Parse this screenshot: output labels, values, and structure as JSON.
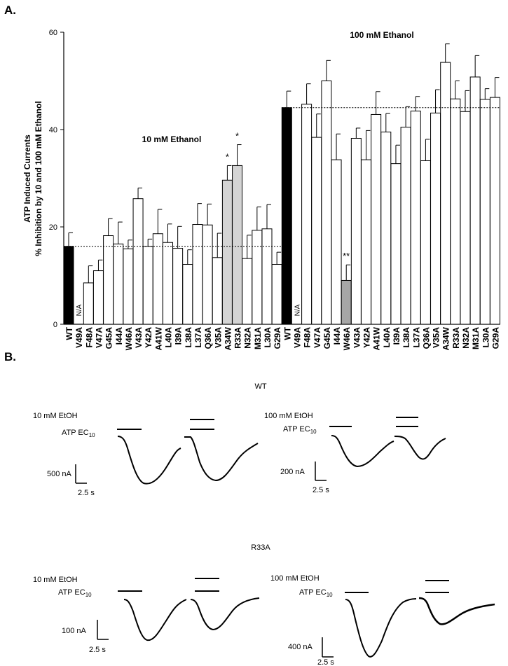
{
  "panels": {
    "a_label": "A.",
    "b_label": "B."
  },
  "chart_data": {
    "type": "bar",
    "ylabel_line1": "ATP Induced Currents",
    "ylabel_line2": "% Inhibition by 10 and 100 mM Ethanol",
    "ylim": [
      0,
      60
    ],
    "yticks": [
      0,
      20,
      40,
      60
    ],
    "groups": [
      {
        "title": "10 mM Ethanol",
        "wt_reference_line": 16,
        "categories": [
          "WT",
          "V49A",
          "F48A",
          "V47A",
          "G45A",
          "I44A",
          "W46A",
          "V43A",
          "Y42A",
          "A41W",
          "L40A",
          "I39A",
          "L38A",
          "L37A",
          "Q36A",
          "V35A",
          "A34W",
          "R33A",
          "N32A",
          "M31A",
          "L30A",
          "G29A"
        ],
        "values": [
          16,
          null,
          8.5,
          11,
          18.2,
          16.5,
          15.5,
          25.8,
          16,
          18.6,
          16.8,
          15.6,
          12.3,
          20.5,
          20.4,
          13.7,
          29.6,
          32.6,
          13.5,
          19.3,
          19.6,
          12.3
        ],
        "errors": [
          2.8,
          null,
          3.5,
          2.2,
          3.5,
          4.5,
          1.8,
          2.2,
          1.5,
          5,
          3.8,
          4.5,
          3,
          4.3,
          4.3,
          5,
          3,
          4.3,
          4.8,
          4.8,
          5,
          2.5
        ],
        "fills": [
          "black",
          "none",
          "white",
          "white",
          "white",
          "white",
          "white",
          "white",
          "white",
          "white",
          "white",
          "white",
          "white",
          "white",
          "white",
          "white",
          "lightgray",
          "lightgray",
          "white",
          "white",
          "white",
          "white"
        ],
        "annotations": [
          {
            "category": "A34W",
            "text": "*"
          },
          {
            "category": "R33A",
            "text": "*"
          }
        ],
        "na_label": "N/A"
      },
      {
        "title": "100 mM Ethanol",
        "wt_reference_line": 44.5,
        "categories": [
          "WT",
          "V49A",
          "F48A",
          "V47A",
          "G45A",
          "I44A",
          "W46A",
          "V43A",
          "Y42A",
          "A41W",
          "L40A",
          "I39A",
          "L38A",
          "L37A",
          "Q36A",
          "V35A",
          "A34W",
          "R33A",
          "N32A",
          "M31A",
          "L30A",
          "G29A"
        ],
        "values": [
          44.5,
          null,
          45.2,
          38.4,
          50,
          33.8,
          9,
          38.2,
          33.8,
          43.1,
          39.5,
          33,
          40.5,
          43.8,
          33.6,
          43.4,
          53.8,
          46.3,
          43.7,
          50.8,
          46.2,
          46.6
        ],
        "errors": [
          3.4,
          null,
          4.2,
          4.8,
          4.2,
          5.3,
          3.2,
          2.1,
          6,
          4.7,
          3.8,
          3.8,
          4.2,
          3,
          4.4,
          4.8,
          3.8,
          3.7,
          4.3,
          4.4,
          2.2,
          4.1
        ],
        "fills": [
          "black",
          "none",
          "white",
          "white",
          "white",
          "white",
          "gray",
          "white",
          "white",
          "white",
          "white",
          "white",
          "white",
          "white",
          "white",
          "white",
          "white",
          "white",
          "white",
          "white",
          "white",
          "white"
        ],
        "annotations": [
          {
            "category": "W46A",
            "text": "**"
          }
        ],
        "na_label": "N/A"
      }
    ]
  },
  "traces": {
    "blocks": [
      {
        "title": "WT",
        "left": {
          "etoh_label": "10 mM EtOH",
          "atp_label": "ATP EC",
          "atp_sub": "10",
          "scale_y": "500 nA",
          "scale_x": "2.5 s"
        },
        "right": {
          "etoh_label": "100 mM EtOH",
          "atp_label": "ATP EC",
          "atp_sub": "10",
          "scale_y": "200 nA",
          "scale_x": "2.5 s"
        }
      },
      {
        "title": "R33A",
        "left": {
          "etoh_label": "10 mM EtOH",
          "atp_label": "ATP EC",
          "atp_sub": "10",
          "scale_y": "100 nA",
          "scale_x": "2.5 s"
        },
        "right": {
          "etoh_label": "100 mM EtOH",
          "atp_label": "ATP EC",
          "atp_sub": "10",
          "scale_y": "400 nA",
          "scale_x": "2.5 s"
        }
      }
    ]
  }
}
